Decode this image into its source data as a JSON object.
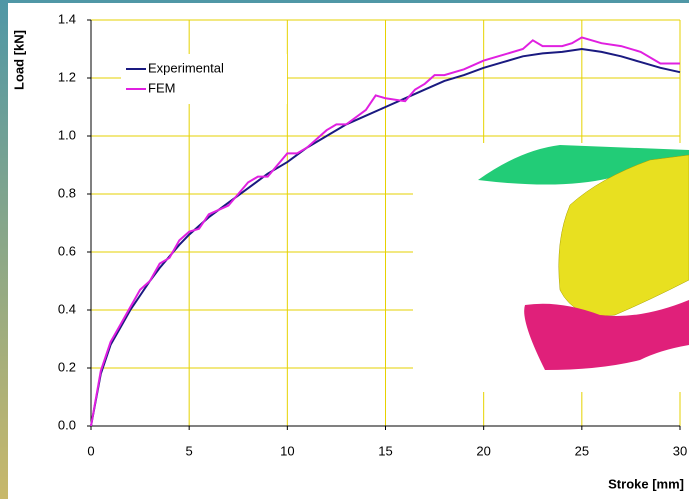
{
  "chart_data": {
    "type": "line",
    "xlabel": "Stroke [mm]",
    "ylabel": "Load [kN]",
    "xlim": [
      0,
      30
    ],
    "xticks": [
      0,
      5,
      10,
      15,
      20,
      25,
      30
    ],
    "ylim": [
      0,
      1.4
    ],
    "yticks": [
      {
        "value": 0,
        "label": "0.0"
      },
      {
        "value": 0.2,
        "label": "0.2"
      },
      {
        "value": 0.4,
        "label": "0.4"
      },
      {
        "value": 0.6,
        "label": "0.6"
      },
      {
        "value": 0.8,
        "label": "0.8"
      },
      {
        "value": 1,
        "label": "1.0"
      },
      {
        "value": 1.2,
        "label": "1.2"
      },
      {
        "value": 1.4,
        "label": "1.4"
      }
    ],
    "grid": true,
    "legend": "upper left",
    "series": [
      {
        "name": "Experimental",
        "color": "#1a1a80",
        "x": [
          0,
          0.5,
          1,
          1.5,
          2,
          2.5,
          3,
          3.5,
          4,
          4.5,
          5,
          6,
          7,
          8,
          9,
          10,
          11,
          12,
          13,
          14,
          15,
          16,
          17,
          18,
          19,
          20,
          21,
          22,
          23,
          24,
          25,
          26,
          27,
          28,
          29,
          30
        ],
        "values": [
          0,
          0.18,
          0.28,
          0.34,
          0.4,
          0.45,
          0.5,
          0.545,
          0.585,
          0.625,
          0.66,
          0.72,
          0.77,
          0.82,
          0.87,
          0.91,
          0.96,
          1.0,
          1.04,
          1.07,
          1.1,
          1.13,
          1.16,
          1.19,
          1.21,
          1.235,
          1.255,
          1.275,
          1.285,
          1.29,
          1.3,
          1.29,
          1.275,
          1.255,
          1.235,
          1.22
        ]
      },
      {
        "name": "FEM",
        "color": "#e020e0",
        "x": [
          0,
          0.5,
          1,
          1.5,
          2,
          2.5,
          3,
          3.5,
          4,
          4.5,
          5,
          5.5,
          6,
          7,
          8,
          8.5,
          9,
          10,
          10.5,
          11,
          12,
          12.5,
          13,
          14,
          14.5,
          15,
          16,
          16.5,
          17,
          17.5,
          18,
          19,
          20,
          21,
          22,
          22.5,
          23,
          24,
          24.5,
          25,
          26,
          27,
          28,
          29,
          30
        ],
        "values": [
          0,
          0.19,
          0.29,
          0.35,
          0.41,
          0.47,
          0.5,
          0.56,
          0.58,
          0.64,
          0.67,
          0.68,
          0.73,
          0.76,
          0.84,
          0.86,
          0.86,
          0.94,
          0.94,
          0.96,
          1.02,
          1.04,
          1.04,
          1.09,
          1.14,
          1.13,
          1.12,
          1.16,
          1.18,
          1.21,
          1.21,
          1.23,
          1.26,
          1.28,
          1.3,
          1.33,
          1.31,
          1.31,
          1.32,
          1.34,
          1.32,
          1.31,
          1.29,
          1.25,
          1.25
        ]
      }
    ]
  }
}
